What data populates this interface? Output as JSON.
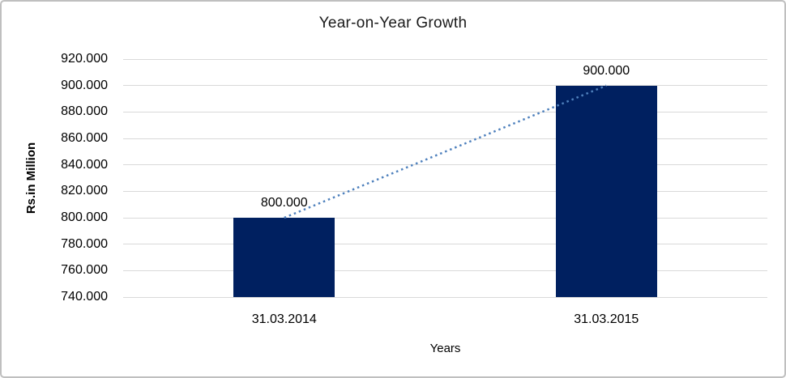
{
  "chart_data": {
    "type": "bar",
    "title": "Year-on-Year Growth",
    "categories": [
      "31.03.2014",
      "31.03.2015"
    ],
    "values": [
      800000,
      900000
    ],
    "value_labels": [
      "800.000",
      "900.000"
    ],
    "xlabel": "Years",
    "ylabel": "Rs.in Million",
    "ylim": [
      740000,
      920000
    ],
    "ytick_step": 20000,
    "ytick_values": [
      920000,
      900000,
      880000,
      860000,
      840000,
      820000,
      800000,
      780000,
      760000,
      740000
    ],
    "ytick_labels": [
      "920.000",
      "900.000",
      "880.000",
      "860.000",
      "840.000",
      "820.000",
      "800.000",
      "780.000",
      "760.000",
      "740.000"
    ],
    "grid": true,
    "legend_position": "none",
    "trendline": {
      "style": "dotted",
      "from_value": 800000,
      "to_value": 900000,
      "color": "#4f81bd"
    },
    "colors": {
      "bar": "#002060",
      "gridline": "#d9d9d9",
      "border": "#bfbfbf",
      "text": "#000000"
    }
  }
}
